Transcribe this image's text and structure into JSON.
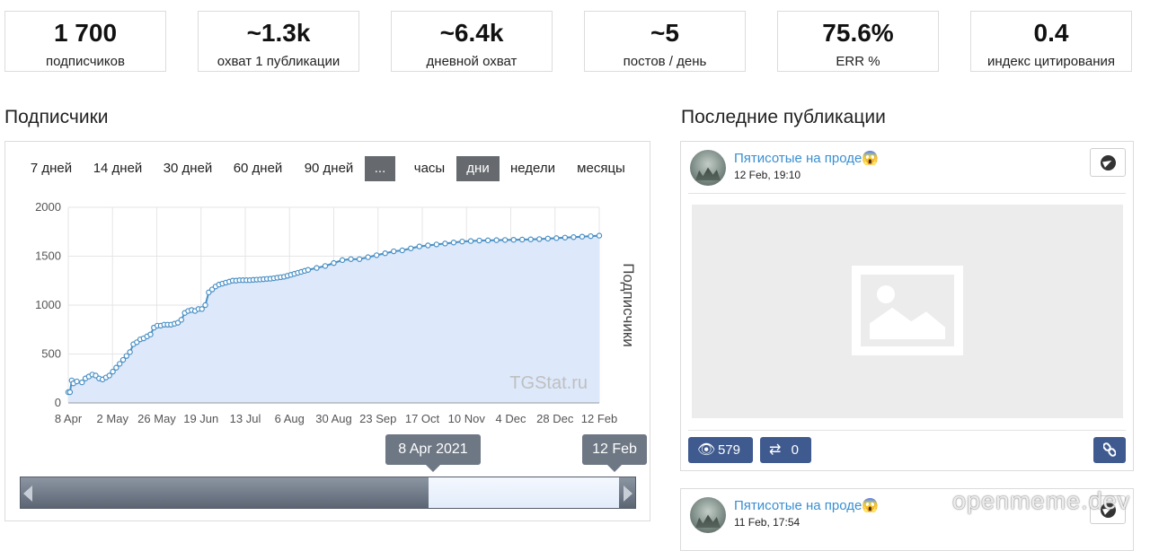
{
  "stats": [
    {
      "value": "1 700",
      "label": "подписчиков"
    },
    {
      "value": "~1.3k",
      "label": "охват 1 публикации"
    },
    {
      "value": "~6.4k",
      "label": "дневной охват"
    },
    {
      "value": "~5",
      "label": "постов / день"
    },
    {
      "value": "75.6%",
      "label": "ERR %"
    },
    {
      "value": "0.4",
      "label": "индекс цитирования"
    }
  ],
  "subscribers_section": {
    "title": "Подписчики",
    "ranges": [
      "7 дней",
      "14 дней",
      "30 дней",
      "60 дней",
      "90 дней",
      "..."
    ],
    "active_range": "...",
    "aggregations": [
      "часы",
      "дни",
      "недели",
      "месяцы"
    ],
    "active_aggregation": "дни",
    "navigator_start_label": "8 Apr 2021",
    "navigator_end_label": "12 Feb",
    "series_color": "#4a90c4",
    "fill_color": "#dde9fb"
  },
  "chart_data": {
    "type": "area",
    "ylabel": "Подписчики",
    "ylim": [
      0,
      2000
    ],
    "yticks": [
      0,
      500,
      1000,
      1500,
      2000
    ],
    "xtick_labels": [
      "8 Apr",
      "2 May",
      "26 May",
      "19 Jun",
      "13 Jul",
      "6 Aug",
      "30 Aug",
      "23 Sep",
      "17 Oct",
      "10 Nov",
      "4 Dec",
      "28 Dec",
      "12 Feb"
    ],
    "watermark": "TGStat.ru",
    "series": [
      {
        "x": [
          0,
          1,
          2,
          3,
          5,
          8,
          10,
          12,
          14,
          16,
          18,
          20,
          22,
          24,
          26,
          28,
          30,
          32,
          34,
          36,
          38,
          40,
          42,
          44,
          46,
          48,
          50,
          52,
          54,
          56,
          58,
          60,
          62,
          64,
          66,
          68,
          70,
          72,
          74,
          76,
          78,
          80,
          82,
          84,
          86,
          88,
          90,
          92,
          94,
          96,
          98,
          100,
          102,
          104,
          106,
          108,
          110,
          112,
          114,
          116,
          118,
          120,
          122,
          124,
          126,
          128,
          130,
          132,
          134,
          136,
          138,
          140,
          145,
          150,
          155,
          160,
          165,
          170,
          175,
          180,
          185,
          190,
          195,
          200,
          205,
          210,
          215,
          220,
          225,
          230,
          235,
          240,
          245,
          250,
          255,
          260,
          265,
          270,
          275,
          280,
          285,
          290,
          295,
          300,
          305,
          310
        ],
        "y": [
          110,
          110,
          230,
          200,
          220,
          210,
          250,
          270,
          290,
          280,
          250,
          240,
          260,
          280,
          320,
          360,
          400,
          440,
          480,
          520,
          600,
          620,
          650,
          660,
          680,
          700,
          770,
          790,
          790,
          800,
          800,
          800,
          810,
          820,
          850,
          920,
          940,
          950,
          940,
          960,
          960,
          1000,
          1130,
          1160,
          1190,
          1210,
          1220,
          1230,
          1240,
          1250,
          1250,
          1255,
          1255,
          1255,
          1255,
          1258,
          1260,
          1262,
          1265,
          1268,
          1270,
          1275,
          1280,
          1285,
          1290,
          1300,
          1310,
          1320,
          1330,
          1340,
          1350,
          1360,
          1380,
          1400,
          1430,
          1460,
          1470,
          1470,
          1490,
          1510,
          1530,
          1550,
          1560,
          1580,
          1600,
          1610,
          1620,
          1630,
          1640,
          1650,
          1655,
          1660,
          1662,
          1664,
          1666,
          1668,
          1670,
          1672,
          1675,
          1680,
          1685,
          1690,
          1695,
          1700,
          1705,
          1710
        ]
      }
    ]
  },
  "posts_section": {
    "title": "Последние публикации",
    "posts": [
      {
        "channel": "Пятисотые на проде😱",
        "date": "12 Feb, 19:10",
        "views": "579",
        "reposts": "0"
      },
      {
        "channel": "Пятисотые на проде😱",
        "date": "11 Feb, 17:54"
      }
    ]
  },
  "watermark": "openmeme.dev"
}
